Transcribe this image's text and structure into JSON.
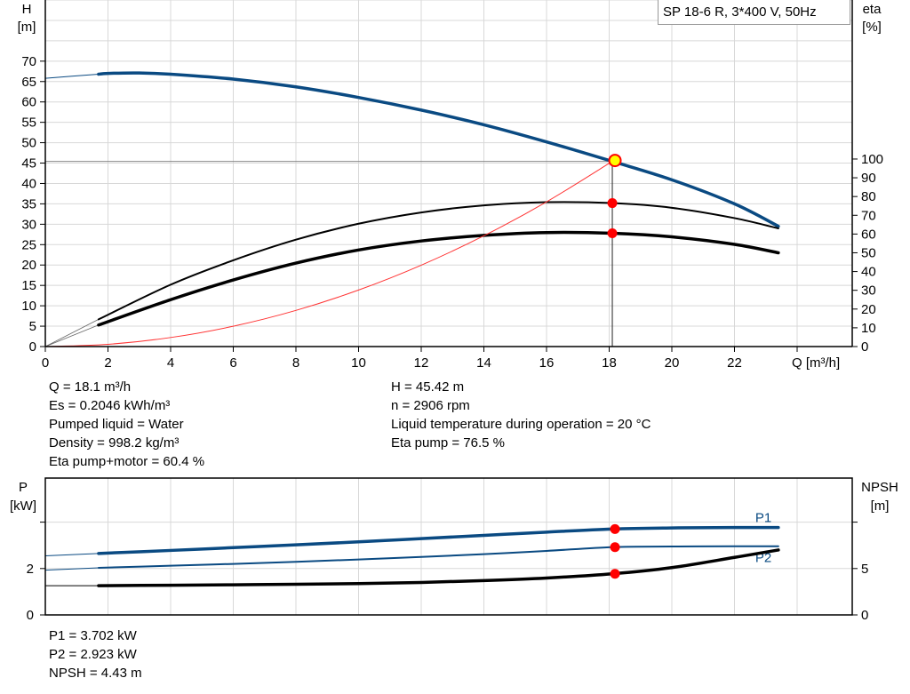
{
  "legend_label": "SP 18-6 R, 3*400 V, 50Hz",
  "colors": {
    "head": "#0a4a82",
    "power": "#0a4a82",
    "efficiency": "#000000",
    "system": "#ff3333",
    "duty_point": "#ff0000",
    "duty_fill": "#ffff00",
    "grid": "#d8d8d8"
  },
  "chart_data": [
    {
      "type": "line",
      "title": "",
      "xlabel": "Q [m³/h]",
      "ylabel": "H\n[m]",
      "y2label": "eta\n[%]",
      "xlim": [
        0,
        25.8
      ],
      "ylim": [
        0,
        85
      ],
      "y2lim": [
        0,
        184.8
      ],
      "xticks": [
        "0",
        "2",
        "4",
        "6",
        "8",
        "10",
        "12",
        "14",
        "16",
        "18",
        "20",
        "22"
      ],
      "yticks": [
        "0",
        "5",
        "10",
        "15",
        "20",
        "25",
        "30",
        "35",
        "40",
        "45",
        "50",
        "55",
        "60",
        "65",
        "70"
      ],
      "y2ticks": [
        "0",
        "10",
        "20",
        "30",
        "40",
        "50",
        "60",
        "70",
        "80",
        "90",
        "100"
      ],
      "grid": true,
      "series": [
        {
          "key": "head",
          "axis": "y",
          "x": [
            0,
            1.7,
            2,
            3,
            4,
            6,
            8,
            10,
            12,
            14,
            16,
            18.1,
            20,
            22,
            23.4
          ],
          "values": [
            65.8,
            66.8,
            67,
            67.1,
            66.8,
            65.6,
            63.7,
            61.1,
            58,
            54.4,
            50.2,
            45.42,
            40.9,
            35,
            29.5
          ],
          "thin_until": 1.7
        },
        {
          "key": "eta_pump",
          "axis": "y2",
          "x": [
            0,
            1.7,
            4,
            6,
            8,
            10,
            12,
            14,
            16,
            18.1,
            20,
            22,
            23.4
          ],
          "values": [
            0,
            14.5,
            33,
            46,
            57,
            65.5,
            71.5,
            75.3,
            77,
            76.5,
            74,
            68.5,
            63
          ],
          "thin_until": 1.7
        },
        {
          "key": "eta_pump_motor",
          "axis": "y2",
          "x": [
            0,
            1.7,
            4,
            6,
            8,
            10,
            12,
            14,
            16,
            18.1,
            20,
            22,
            23.4
          ],
          "values": [
            0,
            11.5,
            25,
            35.5,
            44.5,
            51.5,
            56.3,
            59.3,
            60.8,
            60.4,
            58.5,
            54.5,
            50
          ],
          "thin_until": 1.7
        },
        {
          "key": "system",
          "axis": "y",
          "x": [
            0,
            2,
            4,
            6,
            8,
            10,
            12,
            14,
            16,
            18.1
          ],
          "values": [
            0,
            0.55,
            2.22,
            4.99,
            8.87,
            13.86,
            19.96,
            27.17,
            35.49,
            45.42
          ]
        }
      ],
      "duty_point": {
        "Q": 18.1,
        "H": 45.42,
        "eta_pump": 76.5,
        "eta_pump_motor": 60.4
      }
    },
    {
      "type": "line",
      "title": "",
      "ylabel": "P\n[kW]",
      "y2label": "NPSH\n[m]",
      "xlim": [
        0,
        25.8
      ],
      "ylim": [
        0,
        5.9
      ],
      "y2lim": [
        0,
        14.75
      ],
      "yticks": [
        "0",
        "2",
        ""
      ],
      "y2ticks": [
        "0",
        "5",
        ""
      ],
      "grid": true,
      "series": [
        {
          "key": "P1",
          "name": "P1",
          "axis": "y",
          "x": [
            0,
            1.7,
            4,
            6,
            8,
            10,
            12,
            14,
            16,
            18.1,
            20,
            22,
            23.4
          ],
          "values": [
            2.55,
            2.65,
            2.78,
            2.9,
            3.02,
            3.15,
            3.29,
            3.43,
            3.57,
            3.702,
            3.75,
            3.77,
            3.77
          ],
          "thin_until": 1.7
        },
        {
          "key": "P2",
          "name": "P2",
          "axis": "y",
          "x": [
            0,
            1.7,
            4,
            6,
            8,
            10,
            12,
            14,
            16,
            18.1,
            20,
            22,
            23.4
          ],
          "values": [
            1.93,
            2.03,
            2.12,
            2.2,
            2.29,
            2.39,
            2.5,
            2.62,
            2.76,
            2.923,
            2.95,
            2.96,
            2.96
          ],
          "thin_until": 1.7
        },
        {
          "key": "NPSH",
          "axis": "y2",
          "x": [
            0,
            1.7,
            4,
            6,
            8,
            10,
            12,
            14,
            16,
            18.1,
            20,
            22,
            23.4
          ],
          "values": [
            3.15,
            3.15,
            3.2,
            3.25,
            3.3,
            3.38,
            3.5,
            3.7,
            3.98,
            4.43,
            5.1,
            6.2,
            7.0
          ],
          "thin_until": 1.7
        }
      ],
      "duty_point": {
        "Q": 18.1,
        "P1": 3.702,
        "P2": 2.923,
        "NPSH": 4.43
      }
    }
  ],
  "info_top_left": [
    "Q = 18.1 m³/h",
    "Es = 0.2046 kWh/m³",
    "Pumped liquid = Water",
    "Density = 998.2 kg/m³",
    "Eta pump+motor = 60.4 %"
  ],
  "info_top_right": [
    "H = 45.42 m",
    "n = 2906 rpm",
    "Liquid temperature during operation = 20 °C",
    "Eta pump = 76.5 %"
  ],
  "info_bottom": [
    "P1 = 3.702 kW",
    "P2 = 2.923 kW",
    "NPSH = 4.43 m"
  ]
}
